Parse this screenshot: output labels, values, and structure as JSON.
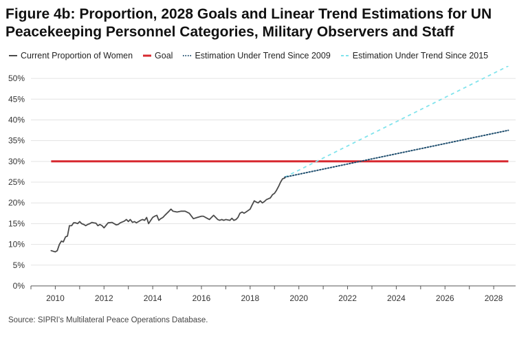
{
  "chart_data": {
    "type": "line",
    "title_line1": "Figure 4b: Proportion, 2028 Goals and Linear Trend Estimations for UN",
    "title_line2": "Peacekeeping Personnel Categories, Military Observers and Staff",
    "xlabel": "",
    "ylabel": "",
    "xlim": [
      2009.0,
      2028.9
    ],
    "ylim": [
      0,
      52
    ],
    "x_ticks": [
      2010,
      2012,
      2014,
      2016,
      2018,
      2020,
      2022,
      2024,
      2026,
      2028
    ],
    "x_tick_labels": [
      "2010",
      "2012",
      "2014",
      "2016",
      "2018",
      "2020",
      "2022",
      "2024",
      "2026",
      "2028"
    ],
    "y_ticks": [
      0,
      5,
      10,
      15,
      20,
      25,
      30,
      35,
      40,
      45,
      50
    ],
    "y_tick_labels": [
      "0%",
      "5%",
      "10%",
      "15%",
      "20%",
      "25%",
      "30%",
      "35%",
      "40%",
      "45%",
      "50%"
    ],
    "grid": "horizontal",
    "legend_position": "top-left",
    "series": [
      {
        "name": "Current Proportion of Women",
        "color": "#4a4a4a",
        "style": "solid",
        "x": [
          2009.83,
          2010.0,
          2010.08,
          2010.17,
          2010.25,
          2010.33,
          2010.42,
          2010.5,
          2010.58,
          2010.67,
          2010.75,
          2010.83,
          2010.92,
          2011.0,
          2011.08,
          2011.17,
          2011.25,
          2011.33,
          2011.42,
          2011.5,
          2011.58,
          2011.67,
          2011.75,
          2011.83,
          2011.92,
          2012.0,
          2012.17,
          2012.33,
          2012.5,
          2012.58,
          2012.67,
          2012.83,
          2012.92,
          2013.0,
          2013.08,
          2013.17,
          2013.25,
          2013.33,
          2013.42,
          2013.5,
          2013.58,
          2013.67,
          2013.75,
          2013.83,
          2014.0,
          2014.08,
          2014.17,
          2014.25,
          2014.33,
          2014.42,
          2014.5,
          2014.67,
          2014.75,
          2014.83,
          2015.0,
          2015.17,
          2015.33,
          2015.5,
          2015.67,
          2015.83,
          2016.0,
          2016.08,
          2016.17,
          2016.33,
          2016.5,
          2016.67,
          2016.75,
          2016.83,
          2016.92,
          2017.0,
          2017.17,
          2017.25,
          2017.33,
          2017.42,
          2017.5,
          2017.58,
          2017.67,
          2017.75,
          2017.83,
          2018.0,
          2018.08,
          2018.17,
          2018.25,
          2018.33,
          2018.42,
          2018.5,
          2018.58,
          2018.67,
          2018.75,
          2018.83,
          2018.92,
          2019.0,
          2019.08,
          2019.17,
          2019.25,
          2019.33,
          2019.42
        ],
        "values": [
          8.5,
          8.2,
          8.5,
          10.0,
          10.8,
          10.6,
          11.8,
          12.0,
          14.5,
          14.5,
          15.2,
          15.2,
          15.0,
          15.5,
          15.0,
          14.8,
          14.5,
          14.8,
          15.0,
          15.3,
          15.2,
          15.1,
          14.5,
          14.8,
          14.5,
          14.0,
          15.2,
          15.3,
          14.7,
          14.8,
          15.2,
          15.6,
          16.0,
          15.5,
          16.0,
          15.3,
          15.5,
          15.2,
          15.5,
          15.8,
          16.0,
          15.8,
          16.5,
          15.0,
          16.5,
          16.8,
          17.0,
          15.8,
          16.2,
          16.5,
          17.0,
          18.0,
          18.5,
          18.0,
          17.8,
          18.0,
          18.0,
          17.5,
          16.2,
          16.5,
          16.8,
          16.8,
          16.5,
          16.0,
          17.0,
          16.0,
          15.8,
          16.0,
          15.8,
          16.0,
          15.8,
          16.3,
          15.8,
          16.0,
          16.5,
          17.5,
          17.8,
          17.5,
          17.8,
          18.5,
          19.5,
          20.5,
          20.2,
          20.0,
          20.5,
          20.0,
          20.3,
          20.8,
          21.0,
          21.2,
          22.0,
          22.3,
          23.0,
          24.0,
          25.0,
          25.8,
          26.0
        ]
      },
      {
        "name": "Goal",
        "color": "#d7282f",
        "style": "solid",
        "x": [
          2009.83,
          2028.6
        ],
        "values": [
          30,
          30
        ]
      },
      {
        "name": "Estimation Under Trend Since 2009",
        "color": "#1f4e6e",
        "style": "dotted",
        "x": [
          2019.42,
          2028.6
        ],
        "values": [
          26.2,
          37.5
        ]
      },
      {
        "name": "Estimation Under Trend Since 2015",
        "color": "#7fe3ec",
        "style": "dashed",
        "x": [
          2019.42,
          2028.6
        ],
        "values": [
          26.2,
          53.0
        ]
      }
    ]
  },
  "source": "Source: SIPRI's Multilateral Peace Operations Database."
}
